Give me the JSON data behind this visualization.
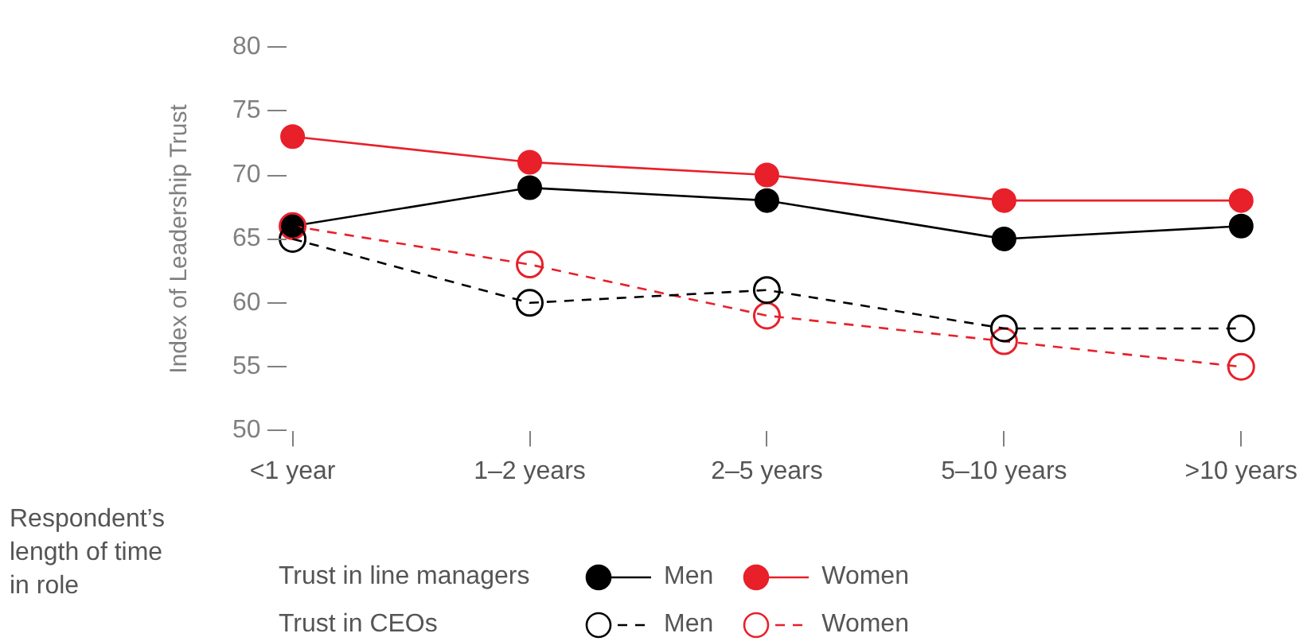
{
  "chart_data": {
    "type": "line",
    "ylabel": "Index of Leadership Trust",
    "xlabel": "Respondent’s length of time in role",
    "categories": [
      "<1 year",
      "1–2 years",
      "2–5 years",
      "5–10 years",
      ">10 years"
    ],
    "ylim": [
      50,
      80
    ],
    "yticks": [
      50,
      55,
      60,
      65,
      70,
      75,
      80
    ],
    "grid": false,
    "legend": "bottom",
    "marker": "circle",
    "annotations": [
      "Trust in line managers",
      "Trust in CEOs"
    ],
    "series": [
      {
        "name": "Men",
        "color": "#000000",
        "values": [
          66,
          69,
          68,
          65,
          66
        ],
        "line_style": "solid"
      },
      {
        "name": "Women",
        "color": "#e8202a",
        "values": [
          73,
          71,
          70,
          68,
          68
        ],
        "line_style": "solid"
      },
      {
        "name": "Men",
        "color": "#000000",
        "values": [
          65,
          60,
          61,
          58,
          58
        ],
        "line_style": "dashed"
      },
      {
        "name": "Women",
        "color": "#e8202a",
        "values": [
          66,
          63,
          59,
          57,
          55
        ],
        "line_style": "dashed"
      }
    ]
  }
}
